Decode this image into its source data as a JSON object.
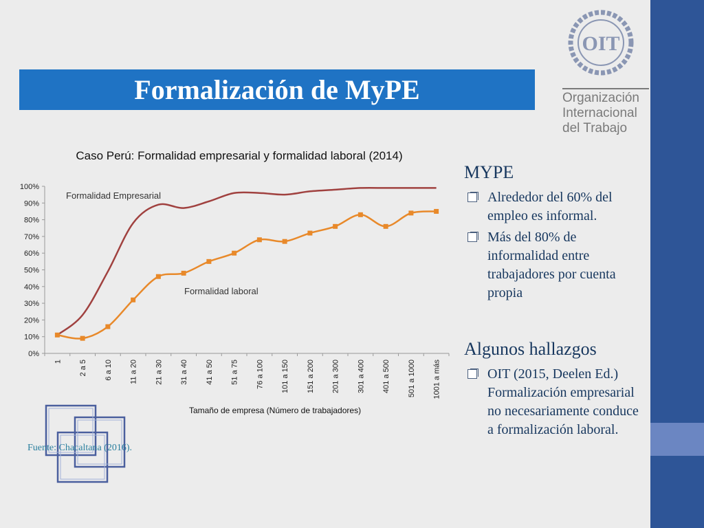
{
  "slide": {
    "title": "Formalización de MyPE",
    "org_name": [
      "Organización",
      "Internacional",
      "del Trabajo"
    ],
    "logo_text": "OIT",
    "source": "Fuente: Chacaltana (2016).",
    "colors": {
      "title_bar": "#1f73c4",
      "right_band": "#2e5597",
      "right_band_accent": "#6b86c2",
      "series_empresarial": "#a0413f",
      "series_laboral": "#e8892a"
    }
  },
  "side": {
    "section1": {
      "heading": "MYPE",
      "bullets": [
        "Alrededor del 60% del empleo es informal.",
        "Más del 80% de informalidad  entre trabajadores por cuenta propia"
      ]
    },
    "section2": {
      "heading": "Algunos hallazgos",
      "bullets": [
        "OIT (2015, Deelen Ed.) Formalización empresarial no necesariamente conduce a formalización laboral."
      ]
    }
  },
  "chart_data": {
    "type": "line",
    "title": "Caso Perú: Formalidad empresarial y formalidad laboral (2014)",
    "xlabel": "Tamaño de empresa (Número de trabajadores)",
    "ylabel": "",
    "categories": [
      "1",
      "2 a 5",
      "6 a 10",
      "11 a 20",
      "21 a 30",
      "31 a 40",
      "41 a 50",
      "51 a 75",
      "76 a 100",
      "101 a 150",
      "151 a 200",
      "201 a 300",
      "301 a 400",
      "401 a 500",
      "501 a 1000",
      "1001 a más"
    ],
    "yticks": [
      "0%",
      "10%",
      "20%",
      "30%",
      "40%",
      "50%",
      "60%",
      "70%",
      "80%",
      "90%",
      "100%"
    ],
    "ylim": [
      0,
      100
    ],
    "grid": false,
    "series": [
      {
        "name": "Formalidad Empresarial",
        "values": [
          11,
          23,
          49,
          78,
          89,
          87,
          91,
          96,
          96,
          95,
          97,
          98,
          99,
          99,
          99,
          99
        ],
        "color": "#a0413f",
        "markers": false
      },
      {
        "name": "Formalidad laboral",
        "values": [
          11,
          9,
          16,
          32,
          46,
          48,
          55,
          60,
          68,
          67,
          72,
          76,
          83,
          76,
          84,
          85
        ],
        "color": "#e8892a",
        "markers": true
      }
    ]
  }
}
